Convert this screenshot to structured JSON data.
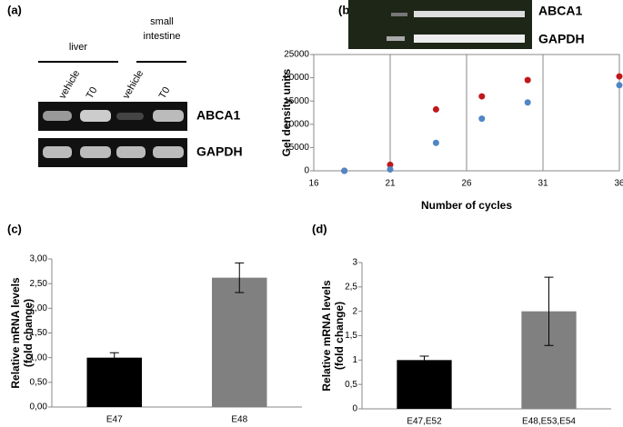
{
  "panel_labels": [
    "(a)",
    "(b)",
    "(c)",
    "(d)"
  ],
  "gel_a": {
    "groups": [
      [
        "liver"
      ],
      [
        "small",
        "intestine"
      ]
    ],
    "lanes": [
      "vehicle",
      "T0",
      "vehicle",
      "T0"
    ],
    "bands": [
      "ABCA1",
      "GAPDH"
    ]
  },
  "gel_b": {
    "bands": [
      "ABCA1",
      "GAPDH"
    ]
  },
  "chart_data": [
    {
      "type": "scatter",
      "xlabel": "Number of cycles",
      "ylabel": "Gel density units",
      "xlim": [
        16,
        36
      ],
      "xticks": [
        16,
        21,
        26,
        31,
        36
      ],
      "ylim": [
        0,
        25000
      ],
      "yticks": [
        0,
        5000,
        10000,
        15000,
        20000,
        25000
      ],
      "grid": "x",
      "series": [
        {
          "color": "#c0171b",
          "x": [
            18,
            21,
            24,
            27,
            30,
            36
          ],
          "values": [
            0,
            1300,
            13200,
            16000,
            19500,
            20300
          ]
        },
        {
          "color": "#4f86c6",
          "x": [
            18,
            21,
            24,
            27,
            30,
            36
          ],
          "values": [
            0,
            300,
            6000,
            11200,
            14700,
            18400
          ]
        }
      ]
    },
    {
      "type": "bar",
      "ylabel": [
        "Relative mRNA levels",
        "(fold change)"
      ],
      "categories": [
        "E47",
        "E48"
      ],
      "values": [
        1.0,
        2.62
      ],
      "errors": [
        0.1,
        0.3
      ],
      "colors": [
        "#000000",
        "#808080"
      ],
      "ylim": [
        0,
        3
      ],
      "yticks": [
        {
          "value": 0,
          "label": "0,00"
        },
        {
          "value": 0.5,
          "label": "0,50"
        },
        {
          "value": 1,
          "label": "1,00"
        },
        {
          "value": 1.5,
          "label": "1,50"
        },
        {
          "value": 2,
          "label": "2,00"
        },
        {
          "value": 2.5,
          "label": "2,50"
        },
        {
          "value": 3,
          "label": "3,00"
        }
      ]
    },
    {
      "type": "bar",
      "ylabel": [
        "Relative mRNA levels",
        "(fold change)"
      ],
      "categories": [
        "E47,E52",
        "E48,E53,E54"
      ],
      "values": [
        1.0,
        2.0
      ],
      "errors": [
        0.08,
        0.7
      ],
      "colors": [
        "#000000",
        "#808080"
      ],
      "ylim": [
        0,
        3
      ],
      "yticks": [
        0,
        {
          "value": 0.5,
          "label": "0,5"
        },
        1,
        {
          "value": 1.5,
          "label": "1,5"
        },
        2,
        {
          "value": 2.5,
          "label": "2,5"
        },
        3
      ]
    }
  ]
}
